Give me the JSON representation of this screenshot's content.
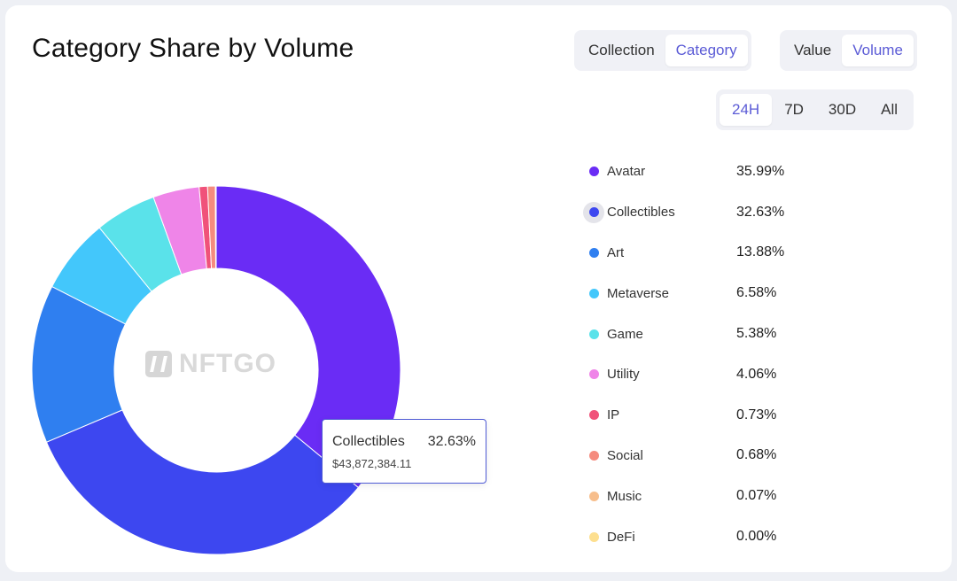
{
  "title": "Category Share by Volume",
  "view_toggle": {
    "options": [
      "Collection",
      "Category"
    ],
    "active": "Category"
  },
  "metric_toggle": {
    "options": [
      "Value",
      "Volume"
    ],
    "active": "Volume"
  },
  "time_toggle": {
    "options": [
      "24H",
      "7D",
      "30D",
      "All"
    ],
    "active": "24H"
  },
  "watermark": "NFTGO",
  "tooltip": {
    "name": "Collectibles",
    "percent": "32.63%",
    "value": "$43,872,384.11"
  },
  "chart_data": {
    "type": "pie",
    "donut": true,
    "categories": [
      "Avatar",
      "Collectibles",
      "Art",
      "Metaverse",
      "Game",
      "Utility",
      "IP",
      "Social",
      "Music",
      "DeFi"
    ],
    "values": [
      35.99,
      32.63,
      13.88,
      6.58,
      5.38,
      4.06,
      0.73,
      0.68,
      0.07,
      0.0
    ],
    "labels": [
      "35.99%",
      "32.63%",
      "13.88%",
      "6.58%",
      "5.38%",
      "4.06%",
      "0.73%",
      "0.68%",
      "0.07%",
      "0.00%"
    ],
    "colors": [
      "#6a2cf5",
      "#3d47f0",
      "#2f7ff0",
      "#43c7fb",
      "#5ae2ea",
      "#ef85e8",
      "#f0527a",
      "#f58b7e",
      "#f7be8c",
      "#fddf8f"
    ],
    "highlighted": "Collectibles",
    "legend_position": "right"
  }
}
